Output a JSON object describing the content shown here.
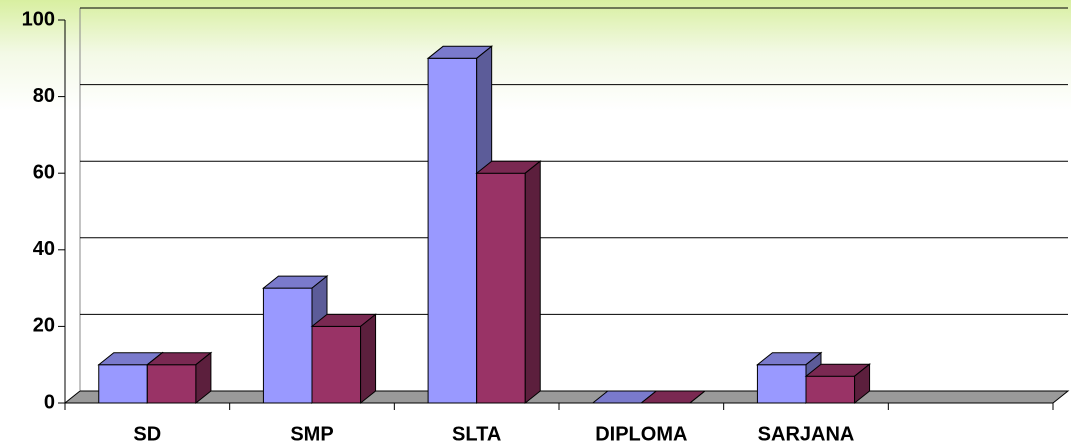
{
  "chart_data": {
    "type": "bar3d",
    "categories": [
      "SD",
      "SMP",
      "SLTA",
      "DIPLOMA",
      "SARJANA",
      null
    ],
    "series": [
      {
        "color": "#9999ff",
        "values": [
          10,
          30,
          90,
          0,
          10,
          null
        ]
      },
      {
        "color": "#993366",
        "values": [
          10,
          20,
          60,
          0,
          7,
          null
        ]
      }
    ],
    "ylim": [
      0,
      100
    ],
    "yticks": [
      0,
      20,
      40,
      60,
      80,
      100
    ],
    "grid": true
  }
}
